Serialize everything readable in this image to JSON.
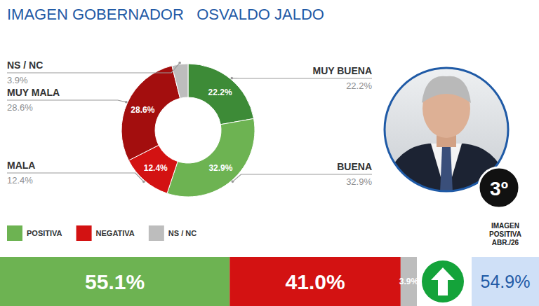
{
  "chart_data": {
    "type": "pie",
    "title": "IMAGEN GOBERNADOR   OSVALDO JALDO",
    "categories": [
      "MUY BUENA",
      "BUENA",
      "MALA",
      "MUY MALA",
      "NS / NC"
    ],
    "values": [
      22.2,
      32.9,
      12.4,
      28.6,
      3.9
    ],
    "value_labels": [
      "22.2%",
      "32.9%",
      "12.4%",
      "28.6%",
      "3.9%"
    ],
    "colors": [
      "#3d8b37",
      "#6db352",
      "#d31212",
      "#a30e0e",
      "#bdbdbd"
    ],
    "data_labels": true,
    "legend": "bottom left",
    "summary": {
      "categories": [
        "POSITIVA",
        "NEGATIVA",
        "NS / NC"
      ],
      "values": [
        55.1,
        41.0,
        3.9
      ],
      "value_labels": [
        "55.1%",
        "41.0%",
        "3.9%"
      ],
      "colors": [
        "#6db352",
        "#d31212",
        "#bdbdbd"
      ]
    },
    "rank_label": "3º",
    "previous": {
      "label": "IMAGEN POSITIVA ABR./26",
      "value": 54.9,
      "value_label": "54.9%"
    }
  }
}
